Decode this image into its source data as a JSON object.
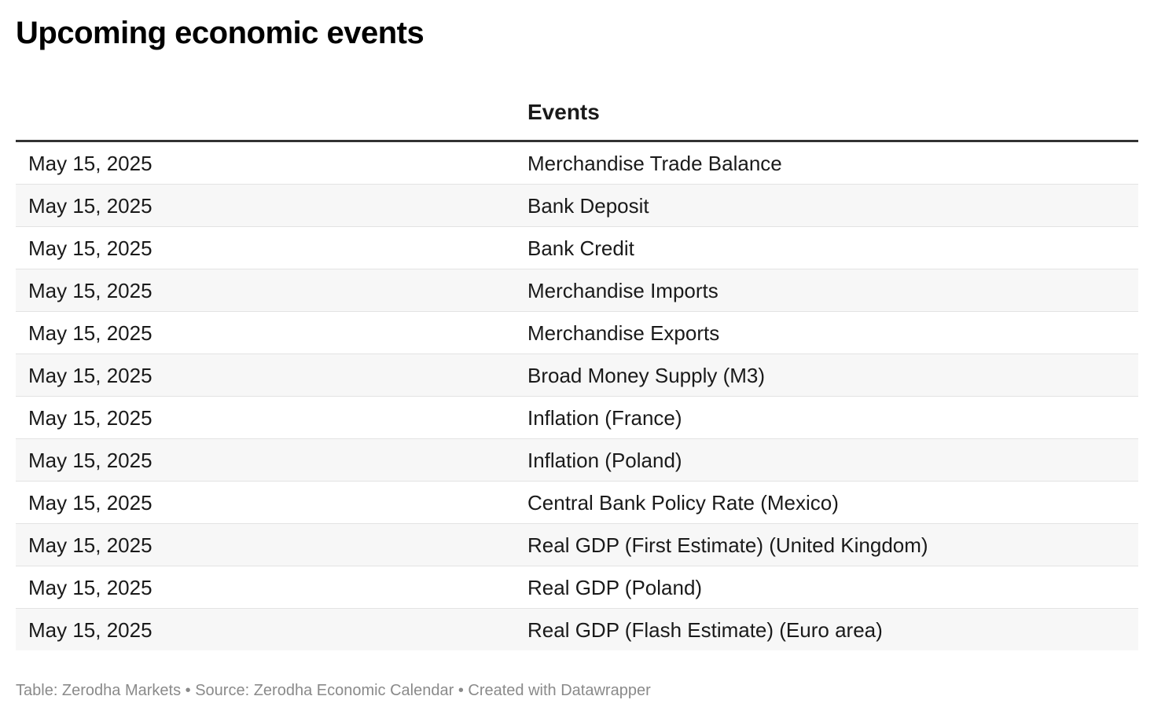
{
  "title": "Upcoming economic events",
  "table": {
    "columns": [
      "",
      "Events"
    ],
    "rows": [
      {
        "date": "May 15, 2025",
        "event": "Merchandise Trade Balance"
      },
      {
        "date": "May 15, 2025",
        "event": "Bank Deposit"
      },
      {
        "date": "May 15, 2025",
        "event": "Bank Credit"
      },
      {
        "date": "May 15, 2025",
        "event": "Merchandise Imports"
      },
      {
        "date": "May 15, 2025",
        "event": "Merchandise Exports"
      },
      {
        "date": "May 15, 2025",
        "event": "Broad Money Supply (M3)"
      },
      {
        "date": "May 15, 2025",
        "event": "Inflation (France)"
      },
      {
        "date": "May 15, 2025",
        "event": "Inflation (Poland)"
      },
      {
        "date": "May 15, 2025",
        "event": "Central Bank Policy Rate (Mexico)"
      },
      {
        "date": "May 15, 2025",
        "event": "Real GDP (First Estimate) (United Kingdom)"
      },
      {
        "date": "May 15, 2025",
        "event": "Real GDP (Poland)"
      },
      {
        "date": "May 15, 2025",
        "event": "Real GDP (Flash Estimate) (Euro area)"
      }
    ]
  },
  "footer": "Table: Zerodha Markets • Source: Zerodha Economic Calendar • Created with Datawrapper"
}
